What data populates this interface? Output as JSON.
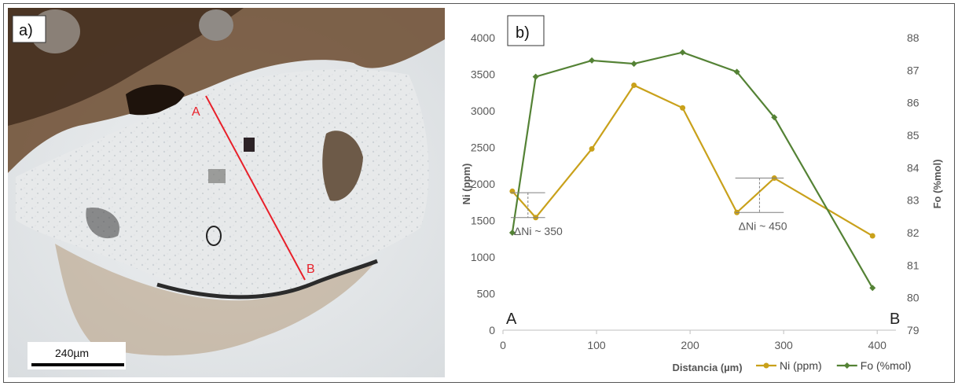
{
  "panel_a": {
    "label": "a)",
    "point_a": "A",
    "point_b": "B",
    "scale_bar": "240µm",
    "line_color": "#e8202a"
  },
  "chart_data": {
    "type": "line",
    "panel_label": "b)",
    "xlabel": "Distancia (µm)",
    "ylabel_left": "Ni (ppm)",
    "ylabel_right": "Fo (%mol)",
    "xlim": [
      0,
      420
    ],
    "ylim_left": [
      0,
      4000
    ],
    "ylim_right": [
      79,
      88
    ],
    "x_ticks": [
      0,
      100,
      200,
      300,
      400
    ],
    "y_left_ticks": [
      0,
      500,
      1000,
      1500,
      2000,
      2500,
      3000,
      3500,
      4000
    ],
    "y_right_ticks": [
      79,
      80,
      81,
      82,
      83,
      84,
      85,
      86,
      87,
      88
    ],
    "grid": false,
    "legend_position": "bottom-right",
    "series": [
      {
        "name": "Ni (ppm)",
        "axis": "left",
        "color": "#c9a11b",
        "x": [
          10,
          35,
          95,
          140,
          192,
          250,
          290,
          395
        ],
        "y": [
          1900,
          1540,
          2480,
          3350,
          3040,
          1610,
          2080,
          1290
        ]
      },
      {
        "name": "Fo (%mol)",
        "axis": "right",
        "color": "#548235",
        "x": [
          10,
          35,
          95,
          140,
          192,
          250,
          290,
          395
        ],
        "y": [
          82.0,
          86.8,
          87.3,
          87.2,
          87.55,
          86.95,
          85.55,
          80.3
        ]
      }
    ],
    "annotations": [
      {
        "text": "ΔNi ~ 350",
        "x_from": 10,
        "x_to": 35,
        "y_top": 1880,
        "y_bottom": 1540
      },
      {
        "text": "ΔNi ~ 450",
        "x_from": 250,
        "x_to": 290,
        "y_top": 2080,
        "y_bottom": 1610
      }
    ],
    "corner_labels": {
      "start": "A",
      "end": "B"
    }
  }
}
